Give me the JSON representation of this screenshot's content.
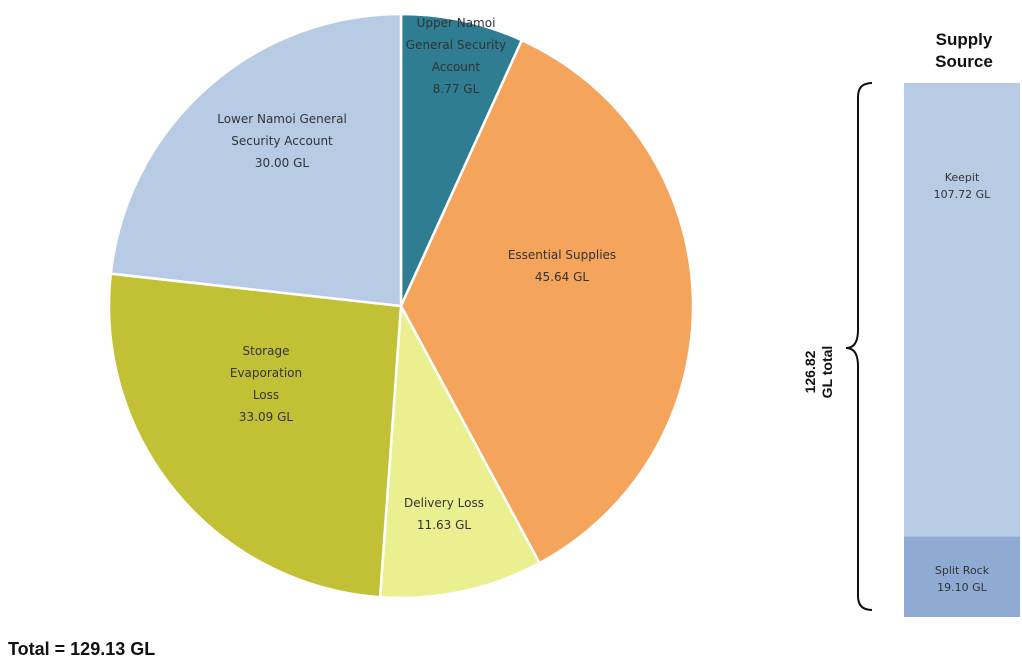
{
  "chart_data": [
    {
      "type": "pie",
      "categories": [
        "Upper Namoi General Security Account",
        "Essential Supplies",
        "Delivery Loss",
        "Storage Evaporation Loss",
        "Lower Namoi General Security Account"
      ],
      "values": [
        8.77,
        45.64,
        11.63,
        33.09,
        30.0
      ],
      "slices": [
        {
          "label_lines": [
            "Upper Namoi",
            "General Security",
            "Account"
          ],
          "value_text": "8.77 GL",
          "value": 8.77,
          "color": "#2e7d93"
        },
        {
          "label_lines": [
            "Essential Supplies"
          ],
          "value_text": "45.64 GL",
          "value": 45.64,
          "color": "#f5a45c"
        },
        {
          "label_lines": [
            "Delivery Loss"
          ],
          "value_text": "11.63 GL",
          "value": 11.63,
          "color": "#eaf08f"
        },
        {
          "label_lines": [
            "Storage",
            "Evaporation",
            "Loss"
          ],
          "value_text": "33.09 GL",
          "value": 33.09,
          "color": "#c2c136"
        },
        {
          "label_lines": [
            "Lower Namoi General",
            "Security Account"
          ],
          "value_text": "30.00 GL",
          "value": 30.0,
          "color": "#b7cce4"
        }
      ],
      "start_angle_deg": 0,
      "direction": "clockwise",
      "total_text": "Total = 129.13 GL",
      "title": "",
      "xlabel": "",
      "ylabel": ""
    },
    {
      "type": "bar",
      "stacked": true,
      "title_lines": [
        "Supply",
        "Source"
      ],
      "categories": [
        "Supply Source"
      ],
      "series": [
        {
          "name": "Keepit",
          "value_text": "107.72 GL",
          "values": [
            107.72
          ],
          "color": "#b7cce4"
        },
        {
          "name": "Split Rock",
          "value_text": "19.10 GL",
          "values": [
            19.1
          ],
          "color": "#8fabd4"
        }
      ],
      "brace_label_lines": [
        "126.82",
        "GL total"
      ],
      "xlabel": "",
      "ylabel": ""
    }
  ]
}
